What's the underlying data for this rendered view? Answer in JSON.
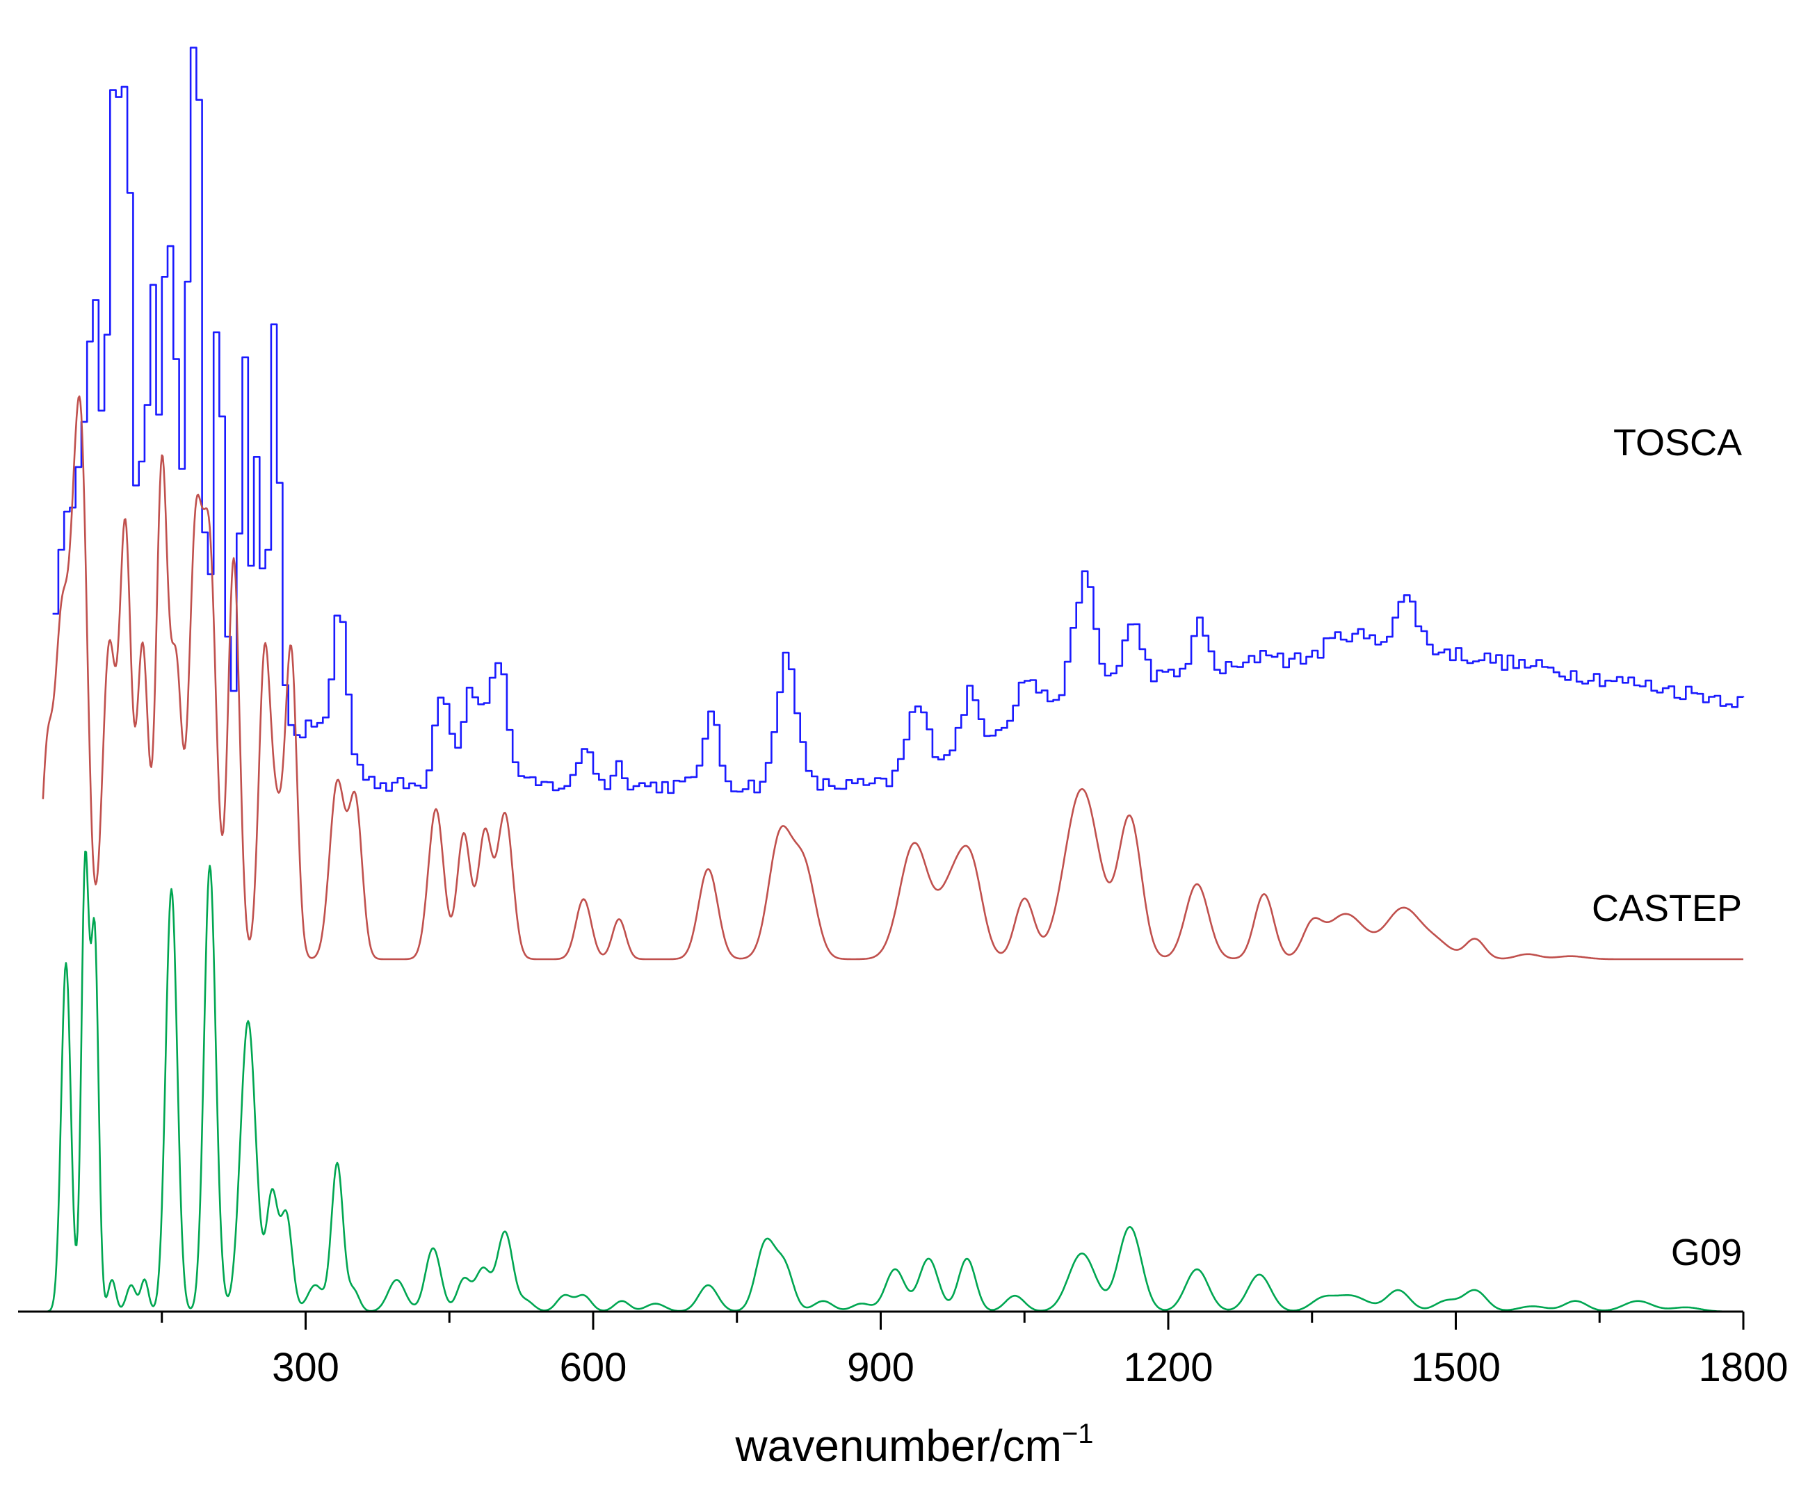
{
  "chart_data": {
    "type": "line",
    "xlabel": "wavenumber/cm",
    "xlabel_superscript": "−1",
    "xlim": [
      0,
      1800
    ],
    "x_ticks": [
      300,
      600,
      900,
      1200,
      1500,
      1800
    ],
    "x_minor_ticks": [
      150,
      450,
      750,
      1050,
      1350,
      1650
    ],
    "grid": false,
    "y_axis_shown": false,
    "traces_offset_vertically": true,
    "series": [
      {
        "name": "TOSCA",
        "color": "#1a1aff",
        "style": "step",
        "baseline": 0.2,
        "scale": 1.0,
        "noise": 0.012,
        "background": [
          [
            25,
            0.06
          ],
          [
            60,
            0.16
          ],
          [
            120,
            0.18
          ],
          [
            250,
            0.11
          ],
          [
            380,
            0.0
          ],
          [
            600,
            0.0
          ],
          [
            900,
            0.0
          ],
          [
            1100,
            0.14
          ],
          [
            1450,
            0.2
          ],
          [
            1800,
            0.12
          ]
        ],
        "peaks": [
          [
            35,
            0.12,
            8
          ],
          [
            48,
            0.2,
            7
          ],
          [
            60,
            0.18,
            6
          ],
          [
            72,
            0.36,
            7
          ],
          [
            80,
            0.3,
            5
          ],
          [
            95,
            0.68,
            5
          ],
          [
            102,
            0.5,
            4
          ],
          [
            111,
            0.86,
            4
          ],
          [
            124,
            0.28,
            4
          ],
          [
            137,
            0.56,
            5
          ],
          [
            152,
            0.58,
            5
          ],
          [
            162,
            0.38,
            5
          ],
          [
            178,
            0.76,
            5
          ],
          [
            186,
            0.62,
            4
          ],
          [
            206,
            0.56,
            5
          ],
          [
            233,
            0.5,
            4
          ],
          [
            247,
            0.38,
            4
          ],
          [
            265,
            0.58,
            5
          ],
          [
            310,
            0.03,
            8
          ],
          [
            333,
            0.22,
            7
          ],
          [
            440,
            0.14,
            8
          ],
          [
            470,
            0.14,
            9
          ],
          [
            498,
            0.18,
            10
          ],
          [
            590,
            0.06,
            7
          ],
          [
            625,
            0.03,
            6
          ],
          [
            720,
            0.1,
            8
          ],
          [
            800,
            0.19,
            10
          ],
          [
            935,
            0.09,
            10
          ],
          [
            990,
            0.07,
            8
          ],
          [
            1050,
            0.05,
            10
          ],
          [
            1110,
            0.16,
            10
          ],
          [
            1160,
            0.08,
            10
          ],
          [
            1230,
            0.07,
            8
          ],
          [
            1300,
            0.02,
            10
          ],
          [
            1385,
            0.03,
            20
          ],
          [
            1445,
            0.07,
            12
          ]
        ]
      },
      {
        "name": "CASTEP",
        "color": "#c0504d",
        "style": "smooth",
        "baseline": 0.0,
        "scale": 1.0,
        "noise": 0,
        "background": [],
        "peaks": [
          [
            30,
            0.38,
            6
          ],
          [
            45,
            0.62,
            7
          ],
          [
            60,
            0.74,
            7
          ],
          [
            68,
            0.6,
            6
          ],
          [
            95,
            0.62,
            7
          ],
          [
            112,
            0.84,
            6
          ],
          [
            130,
            0.62,
            6
          ],
          [
            150,
            0.98,
            6
          ],
          [
            165,
            0.56,
            6
          ],
          [
            185,
            0.82,
            7
          ],
          [
            200,
            0.78,
            7
          ],
          [
            225,
            0.8,
            6
          ],
          [
            257,
            0.58,
            6
          ],
          [
            270,
            0.26,
            7
          ],
          [
            285,
            0.6,
            6
          ],
          [
            333,
            0.35,
            8
          ],
          [
            352,
            0.31,
            7
          ],
          [
            436,
            0.3,
            8
          ],
          [
            465,
            0.25,
            7
          ],
          [
            487,
            0.25,
            7
          ],
          [
            508,
            0.29,
            8
          ],
          [
            590,
            0.12,
            8
          ],
          [
            627,
            0.08,
            7
          ],
          [
            720,
            0.18,
            10
          ],
          [
            795,
            0.24,
            12
          ],
          [
            820,
            0.18,
            12
          ],
          [
            935,
            0.23,
            15
          ],
          [
            975,
            0.14,
            14
          ],
          [
            995,
            0.16,
            12
          ],
          [
            1050,
            0.12,
            10
          ],
          [
            1110,
            0.34,
            18
          ],
          [
            1160,
            0.28,
            12
          ],
          [
            1230,
            0.15,
            12
          ],
          [
            1300,
            0.13,
            10
          ],
          [
            1350,
            0.06,
            10
          ],
          [
            1385,
            0.09,
            20
          ],
          [
            1445,
            0.1,
            18
          ],
          [
            1480,
            0.03,
            15
          ],
          [
            1520,
            0.04,
            10
          ],
          [
            1575,
            0.01,
            12
          ],
          [
            1620,
            0.006,
            15
          ]
        ]
      },
      {
        "name": "G09",
        "color": "#00a651",
        "style": "smooth",
        "baseline": 0.0,
        "scale": 1.0,
        "noise": 0,
        "background": [],
        "peaks": [
          [
            50,
            0.66,
            5
          ],
          [
            70,
            0.84,
            4
          ],
          [
            80,
            0.7,
            4
          ],
          [
            98,
            0.06,
            4
          ],
          [
            118,
            0.05,
            5
          ],
          [
            132,
            0.06,
            4
          ],
          [
            160,
            0.8,
            6
          ],
          [
            200,
            0.84,
            6
          ],
          [
            210,
            0.03,
            5
          ],
          [
            240,
            0.55,
            8
          ],
          [
            265,
            0.22,
            6
          ],
          [
            280,
            0.18,
            6
          ],
          [
            310,
            0.05,
            8
          ],
          [
            333,
            0.28,
            6
          ],
          [
            350,
            0.04,
            6
          ],
          [
            395,
            0.06,
            9
          ],
          [
            433,
            0.12,
            8
          ],
          [
            465,
            0.06,
            7
          ],
          [
            485,
            0.08,
            8
          ],
          [
            508,
            0.15,
            8
          ],
          [
            530,
            0.02,
            8
          ],
          [
            570,
            0.03,
            8
          ],
          [
            590,
            0.03,
            8
          ],
          [
            630,
            0.02,
            8
          ],
          [
            665,
            0.015,
            10
          ],
          [
            720,
            0.05,
            10
          ],
          [
            780,
            0.13,
            10
          ],
          [
            800,
            0.08,
            9
          ],
          [
            840,
            0.02,
            10
          ],
          [
            880,
            0.015,
            10
          ],
          [
            915,
            0.08,
            10
          ],
          [
            950,
            0.1,
            10
          ],
          [
            990,
            0.1,
            9
          ],
          [
            1040,
            0.03,
            10
          ],
          [
            1110,
            0.11,
            14
          ],
          [
            1160,
            0.16,
            12
          ],
          [
            1230,
            0.08,
            12
          ],
          [
            1295,
            0.07,
            12
          ],
          [
            1360,
            0.02,
            12
          ],
          [
            1390,
            0.03,
            18
          ],
          [
            1440,
            0.04,
            12
          ],
          [
            1490,
            0.02,
            12
          ],
          [
            1520,
            0.04,
            12
          ],
          [
            1580,
            0.01,
            15
          ],
          [
            1625,
            0.02,
            12
          ],
          [
            1690,
            0.02,
            15
          ],
          [
            1740,
            0.008,
            15
          ]
        ]
      }
    ]
  }
}
